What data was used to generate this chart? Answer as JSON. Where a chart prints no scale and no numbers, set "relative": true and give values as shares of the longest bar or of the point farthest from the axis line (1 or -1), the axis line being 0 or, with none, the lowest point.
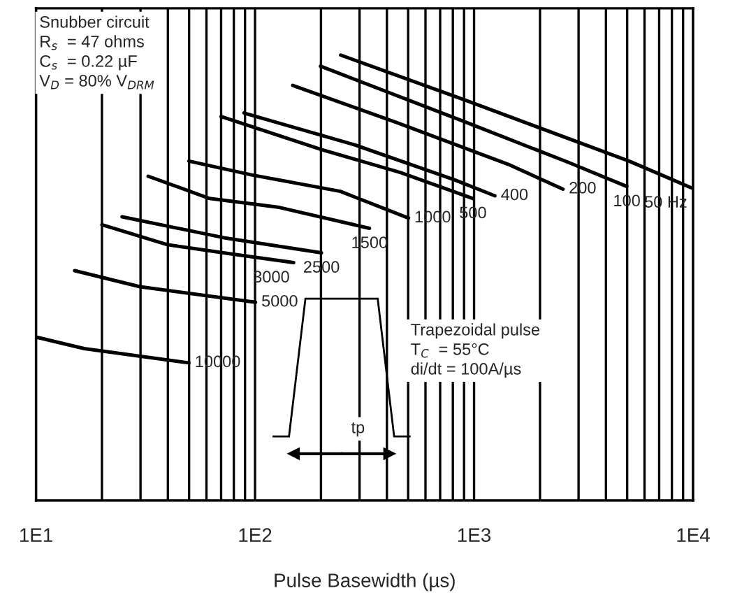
{
  "chart_data": {
    "type": "line",
    "relative": true,
    "log": "x",
    "grid": "x",
    "legend": false,
    "tick_labels": "x",
    "marker": "none",
    "line_style": "solid",
    "xlabel": "Pulse Basewidth (µs)",
    "xlim": [
      10,
      10000
    ],
    "xticks": [
      {
        "value": 10,
        "label": "1E1"
      },
      {
        "value": 100,
        "label": "1E2"
      },
      {
        "value": 1000,
        "label": "1E3"
      },
      {
        "value": 10000,
        "label": "1E4"
      }
    ],
    "series": [
      {
        "name": "50 Hz",
        "color": "#000000",
        "x": [
          246,
          919,
          5100,
          7900,
          9800
        ],
        "values": [
          1.0,
          0.898,
          0.762,
          0.722,
          0.702
        ]
      },
      {
        "name": "100",
        "color": "#000000",
        "x": [
          199,
          919,
          2700,
          4980
        ],
        "values": [
          0.975,
          0.849,
          0.759,
          0.705
        ]
      },
      {
        "name": "200",
        "color": "#000000",
        "x": [
          148.6,
          440,
          1427,
          2546
        ],
        "values": [
          0.932,
          0.849,
          0.755,
          0.699
        ]
      },
      {
        "name": "400",
        "color": "#000000",
        "x": [
          89,
          283,
          813,
          1245
        ],
        "values": [
          0.87,
          0.799,
          0.72,
          0.684
        ]
      },
      {
        "name": "500",
        "color": "#000000",
        "x": [
          70,
          201,
          463,
          988
        ],
        "values": [
          0.862,
          0.788,
          0.736,
          0.678
        ]
      },
      {
        "name": "1000",
        "color": "#000000",
        "x": [
          49.9,
          96.5,
          245,
          502
        ],
        "values": [
          0.762,
          0.731,
          0.694,
          0.634
        ]
      },
      {
        "name": "1500",
        "color": "#000000",
        "x": [
          32.5,
          62,
          129,
          333
        ],
        "values": [
          0.728,
          0.678,
          0.658,
          0.611
        ]
      },
      {
        "name": "2500",
        "color": "#000000",
        "x": [
          24.7,
          72,
          201
        ],
        "values": [
          0.637,
          0.59,
          0.556
        ]
      },
      {
        "name": "3000",
        "color": "#000000",
        "x": [
          20,
          40,
          79.4,
          150
        ],
        "values": [
          0.619,
          0.574,
          0.553,
          0.534
        ]
      },
      {
        "name": "5000",
        "color": "#000000",
        "x": [
          15,
          29.8,
          100.5
        ],
        "values": [
          0.516,
          0.48,
          0.445
        ]
      },
      {
        "name": "10000",
        "color": "#000000",
        "x": [
          10,
          16.6,
          49.9
        ],
        "values": [
          0.367,
          0.341,
          0.309
        ]
      }
    ],
    "annotations": [
      "Snubber circuit\nR$_{s}$  = 47 ohms\nC$_{s}$  = 0.22 µF\nV$_{D}$ = 80% V$_{DRM}$",
      "Trapezoidal pulse\nT$_{C}$  = 55°C\ndi/dt = 100A/µs",
      "tp"
    ]
  }
}
